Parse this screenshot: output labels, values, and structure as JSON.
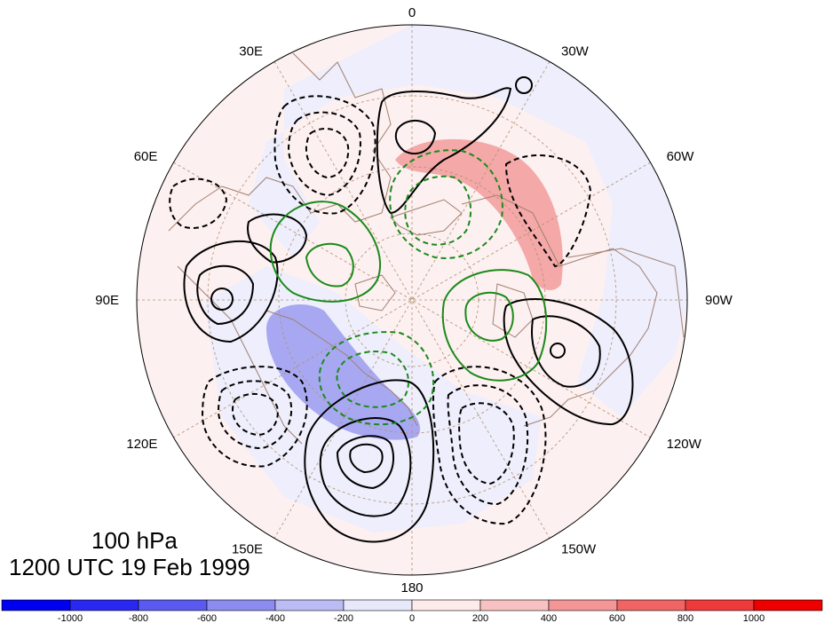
{
  "map": {
    "longitude_labels": [
      {
        "text": "0",
        "lon": 0
      },
      {
        "text": "30W",
        "lon": -30
      },
      {
        "text": "60W",
        "lon": -60
      },
      {
        "text": "90W",
        "lon": -90
      },
      {
        "text": "120W",
        "lon": -120
      },
      {
        "text": "150W",
        "lon": -150
      },
      {
        "text": "180",
        "lon": 180
      },
      {
        "text": "150E",
        "lon": 150
      },
      {
        "text": "120E",
        "lon": 120
      },
      {
        "text": "90E",
        "lon": 90
      },
      {
        "text": "60E",
        "lon": 60
      },
      {
        "text": "30E",
        "lon": 30
      }
    ],
    "caption": {
      "level": "100 hPa",
      "time": "1200 UTC 19 Feb 1999"
    },
    "colorbar": {
      "ticks": [
        "-1000",
        "-800",
        "-600",
        "-400",
        "-200",
        "0",
        "200",
        "400",
        "600",
        "800",
        "1000"
      ],
      "colors": [
        "#0000f0",
        "#2828f0",
        "#5a5af0",
        "#8c8cf0",
        "#bcbcf4",
        "#e8e8fb",
        "#fdeaea",
        "#f8c2c2",
        "#f49696",
        "#f06464",
        "#ee3a3a",
        "#ee0000"
      ]
    },
    "colors": {
      "positive_contour": "#000000",
      "negative_contour": "#000000",
      "green_contour": "#1a8a1a",
      "coast": "#a08070",
      "grid": "#b09070"
    }
  }
}
